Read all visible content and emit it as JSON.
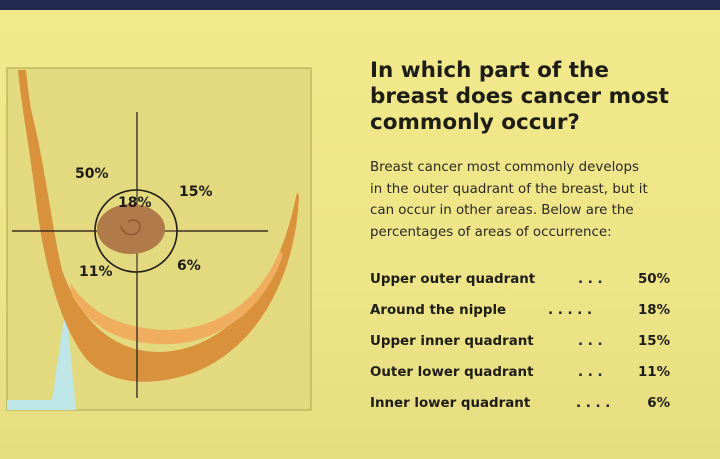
{
  "heading": {
    "line1": "In which part of the",
    "line2": "breast does cancer most",
    "line3": "commonly occur?"
  },
  "intro": {
    "line1": "Breast cancer most commonly develops",
    "line2": "in the outer quadrant of the breast, but it",
    "line3": "can occur in other areas. Below are the",
    "line4": "percentages of areas of occurrence:"
  },
  "diagram_labels": {
    "upper_outer": "50%",
    "nipple": "18%",
    "upper_inner": "15%",
    "outer_lower": "11%",
    "inner_lower": "6%"
  },
  "quadrants": [
    {
      "label": "Upper outer quadrant",
      "dots": ". . .",
      "value": "50%"
    },
    {
      "label": "Around the nipple",
      "dots": ". . . . .",
      "value": "18%"
    },
    {
      "label": "Upper inner quadrant",
      "dots": ". . .",
      "value": "15%"
    },
    {
      "label": "Outer lower quadrant",
      "dots": ". . .",
      "value": "11%"
    },
    {
      "label": "Inner lower quadrant",
      "dots": ". . . .",
      "value": "6%"
    }
  ],
  "colors": {
    "background": "#f1e98a",
    "top_bar": "#232a52",
    "breast_outline": "#d9913c",
    "inner_band": "#f0ad5e",
    "nipple": "#b07a4a",
    "axis_lines": "#3a3020",
    "armpit_shadow": "#bfe6e6"
  }
}
